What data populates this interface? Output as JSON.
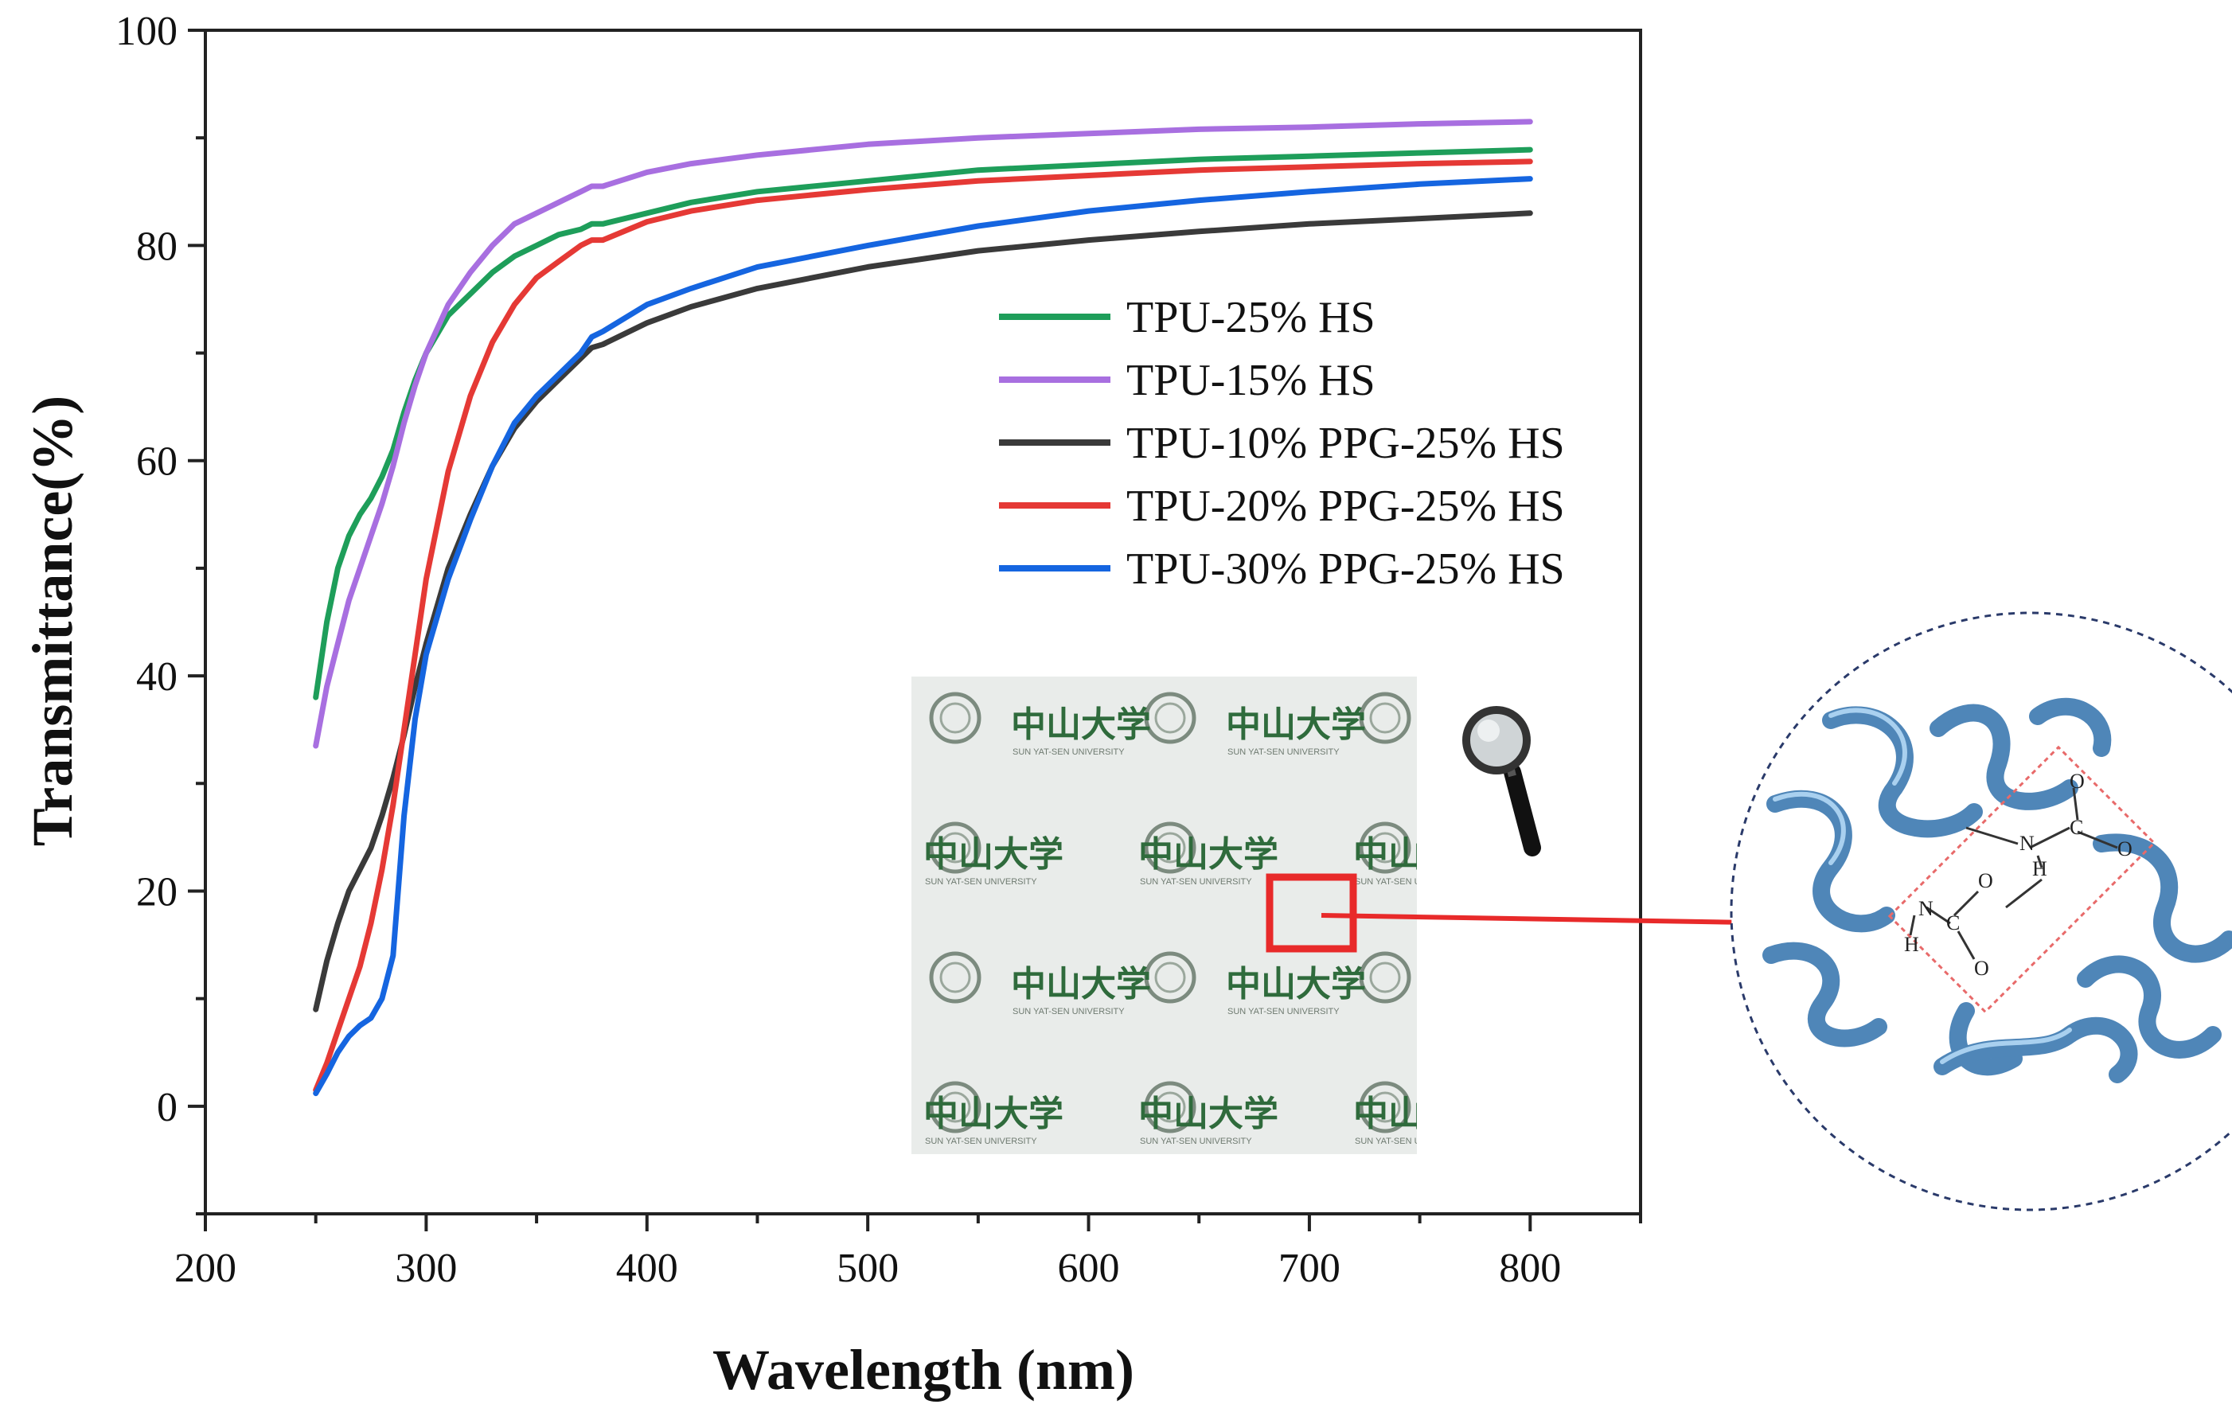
{
  "chart_data": {
    "type": "line",
    "title": "",
    "xlabel": "Wavelength (nm)",
    "ylabel": "Transmittance(%)",
    "xlim": [
      200,
      850
    ],
    "ylim": [
      -10,
      100
    ],
    "xticks": [
      200,
      300,
      400,
      500,
      600,
      700,
      800
    ],
    "yticks": [
      0,
      20,
      40,
      60,
      80,
      100
    ],
    "grid": false,
    "legend_position": "upper-right",
    "series": [
      {
        "name": "TPU-25% HS",
        "color": "#1e9e5a",
        "points": [
          [
            250,
            38
          ],
          [
            255,
            45
          ],
          [
            260,
            50
          ],
          [
            265,
            53
          ],
          [
            270,
            55
          ],
          [
            275,
            56.5
          ],
          [
            280,
            58.5
          ],
          [
            285,
            61
          ],
          [
            290,
            64.5
          ],
          [
            295,
            67.5
          ],
          [
            300,
            70
          ],
          [
            310,
            73.5
          ],
          [
            320,
            75.5
          ],
          [
            330,
            77.5
          ],
          [
            340,
            79
          ],
          [
            350,
            80
          ],
          [
            360,
            81
          ],
          [
            370,
            81.5
          ],
          [
            375,
            82
          ],
          [
            380,
            82
          ],
          [
            400,
            83
          ],
          [
            420,
            84
          ],
          [
            450,
            85
          ],
          [
            500,
            86
          ],
          [
            550,
            87
          ],
          [
            600,
            87.5
          ],
          [
            650,
            88
          ],
          [
            700,
            88.3
          ],
          [
            750,
            88.6
          ],
          [
            800,
            88.9
          ]
        ]
      },
      {
        "name": "TPU-15% HS",
        "color": "#a86fe0",
        "points": [
          [
            250,
            33.5
          ],
          [
            255,
            39
          ],
          [
            260,
            43
          ],
          [
            265,
            47
          ],
          [
            270,
            50
          ],
          [
            275,
            53
          ],
          [
            280,
            56
          ],
          [
            285,
            59.5
          ],
          [
            290,
            63.5
          ],
          [
            295,
            67
          ],
          [
            300,
            70
          ],
          [
            310,
            74.5
          ],
          [
            320,
            77.5
          ],
          [
            330,
            80
          ],
          [
            340,
            82
          ],
          [
            350,
            83
          ],
          [
            360,
            84
          ],
          [
            370,
            85
          ],
          [
            375,
            85.5
          ],
          [
            380,
            85.5
          ],
          [
            400,
            86.8
          ],
          [
            420,
            87.6
          ],
          [
            450,
            88.4
          ],
          [
            500,
            89.4
          ],
          [
            550,
            90
          ],
          [
            600,
            90.4
          ],
          [
            650,
            90.8
          ],
          [
            700,
            91
          ],
          [
            750,
            91.3
          ],
          [
            800,
            91.5
          ]
        ]
      },
      {
        "name": "TPU-10% PPG-25% HS",
        "color": "#3a3a3a",
        "points": [
          [
            250,
            9
          ],
          [
            255,
            13.5
          ],
          [
            260,
            17
          ],
          [
            265,
            20
          ],
          [
            270,
            22
          ],
          [
            275,
            24
          ],
          [
            280,
            27
          ],
          [
            285,
            30.5
          ],
          [
            290,
            34.5
          ],
          [
            295,
            39
          ],
          [
            300,
            43
          ],
          [
            310,
            50
          ],
          [
            320,
            55
          ],
          [
            330,
            59.5
          ],
          [
            340,
            63
          ],
          [
            350,
            65.5
          ],
          [
            360,
            67.5
          ],
          [
            370,
            69.5
          ],
          [
            375,
            70.5
          ],
          [
            380,
            70.8
          ],
          [
            400,
            72.8
          ],
          [
            420,
            74.3
          ],
          [
            450,
            76
          ],
          [
            500,
            78
          ],
          [
            550,
            79.5
          ],
          [
            600,
            80.5
          ],
          [
            650,
            81.3
          ],
          [
            700,
            82
          ],
          [
            750,
            82.5
          ],
          [
            800,
            83
          ]
        ]
      },
      {
        "name": "TPU-20% PPG-25% HS",
        "color": "#e53935",
        "points": [
          [
            250,
            1.5
          ],
          [
            255,
            4
          ],
          [
            260,
            7
          ],
          [
            265,
            10
          ],
          [
            270,
            13
          ],
          [
            275,
            17
          ],
          [
            280,
            22
          ],
          [
            285,
            28
          ],
          [
            290,
            35
          ],
          [
            295,
            42
          ],
          [
            300,
            49
          ],
          [
            310,
            59
          ],
          [
            320,
            66
          ],
          [
            330,
            71
          ],
          [
            340,
            74.5
          ],
          [
            350,
            77
          ],
          [
            360,
            78.5
          ],
          [
            370,
            80
          ],
          [
            375,
            80.5
          ],
          [
            380,
            80.5
          ],
          [
            400,
            82.2
          ],
          [
            420,
            83.2
          ],
          [
            450,
            84.2
          ],
          [
            500,
            85.2
          ],
          [
            550,
            86
          ],
          [
            600,
            86.5
          ],
          [
            650,
            87
          ],
          [
            700,
            87.3
          ],
          [
            750,
            87.6
          ],
          [
            800,
            87.8
          ]
        ]
      },
      {
        "name": "TPU-30% PPG-25% HS",
        "color": "#1565e0",
        "points": [
          [
            250,
            1.2
          ],
          [
            255,
            3
          ],
          [
            260,
            5
          ],
          [
            265,
            6.5
          ],
          [
            270,
            7.5
          ],
          [
            275,
            8.2
          ],
          [
            280,
            10
          ],
          [
            285,
            14
          ],
          [
            290,
            27
          ],
          [
            295,
            36
          ],
          [
            300,
            42
          ],
          [
            310,
            49
          ],
          [
            320,
            54.5
          ],
          [
            330,
            59.5
          ],
          [
            340,
            63.5
          ],
          [
            350,
            66
          ],
          [
            360,
            68
          ],
          [
            370,
            70
          ],
          [
            375,
            71.5
          ],
          [
            380,
            72
          ],
          [
            400,
            74.5
          ],
          [
            420,
            76
          ],
          [
            450,
            78
          ],
          [
            500,
            80
          ],
          [
            550,
            81.8
          ],
          [
            600,
            83.2
          ],
          [
            650,
            84.2
          ],
          [
            700,
            85
          ],
          [
            750,
            85.7
          ],
          [
            800,
            86.2
          ]
        ]
      }
    ]
  },
  "inset": {
    "watermark_text": "中山大学",
    "watermark_subtext": "SUN YAT-SEN UNIVERSITY",
    "magnifier": "magnifier-icon",
    "chemistry": {
      "n1": "N",
      "h1": "H",
      "c1": "C",
      "o1": "O",
      "o2": "O",
      "n2": "N",
      "h2": "H",
      "c2": "C",
      "o3": "O",
      "o4": "O"
    }
  }
}
